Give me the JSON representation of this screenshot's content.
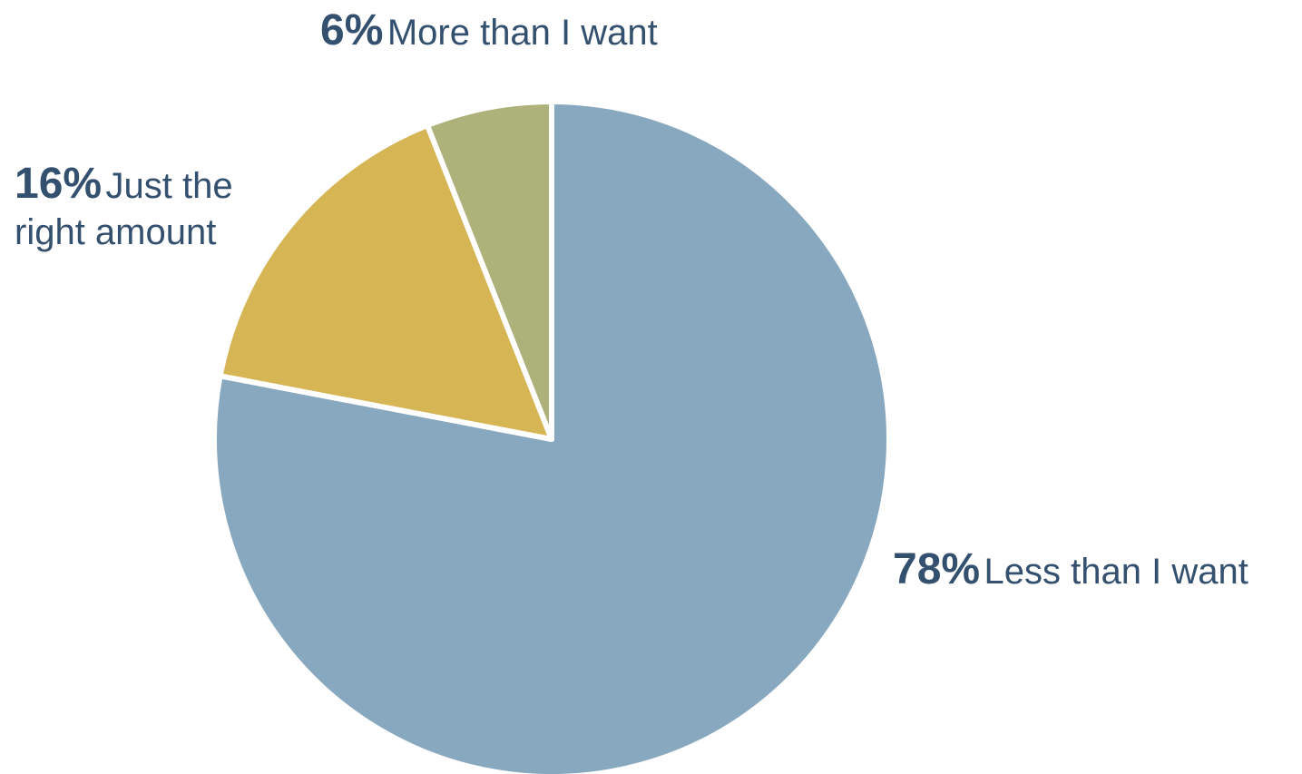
{
  "chart_data": {
    "type": "pie",
    "title": "",
    "slices": [
      {
        "label": "Less than I want",
        "value": 78,
        "value_label": "78%",
        "color": "#87a8be"
      },
      {
        "label_line1": "Just the",
        "label_line2": "right amount",
        "value": 16,
        "value_label": "16%",
        "color": "#d5b554"
      },
      {
        "label": "More than I want",
        "value": 6,
        "value_label": "6%",
        "color": "#adb27b"
      }
    ],
    "start_angle_deg": 0,
    "direction": "clockwise",
    "legend": "none",
    "label_color": "#34506f"
  }
}
